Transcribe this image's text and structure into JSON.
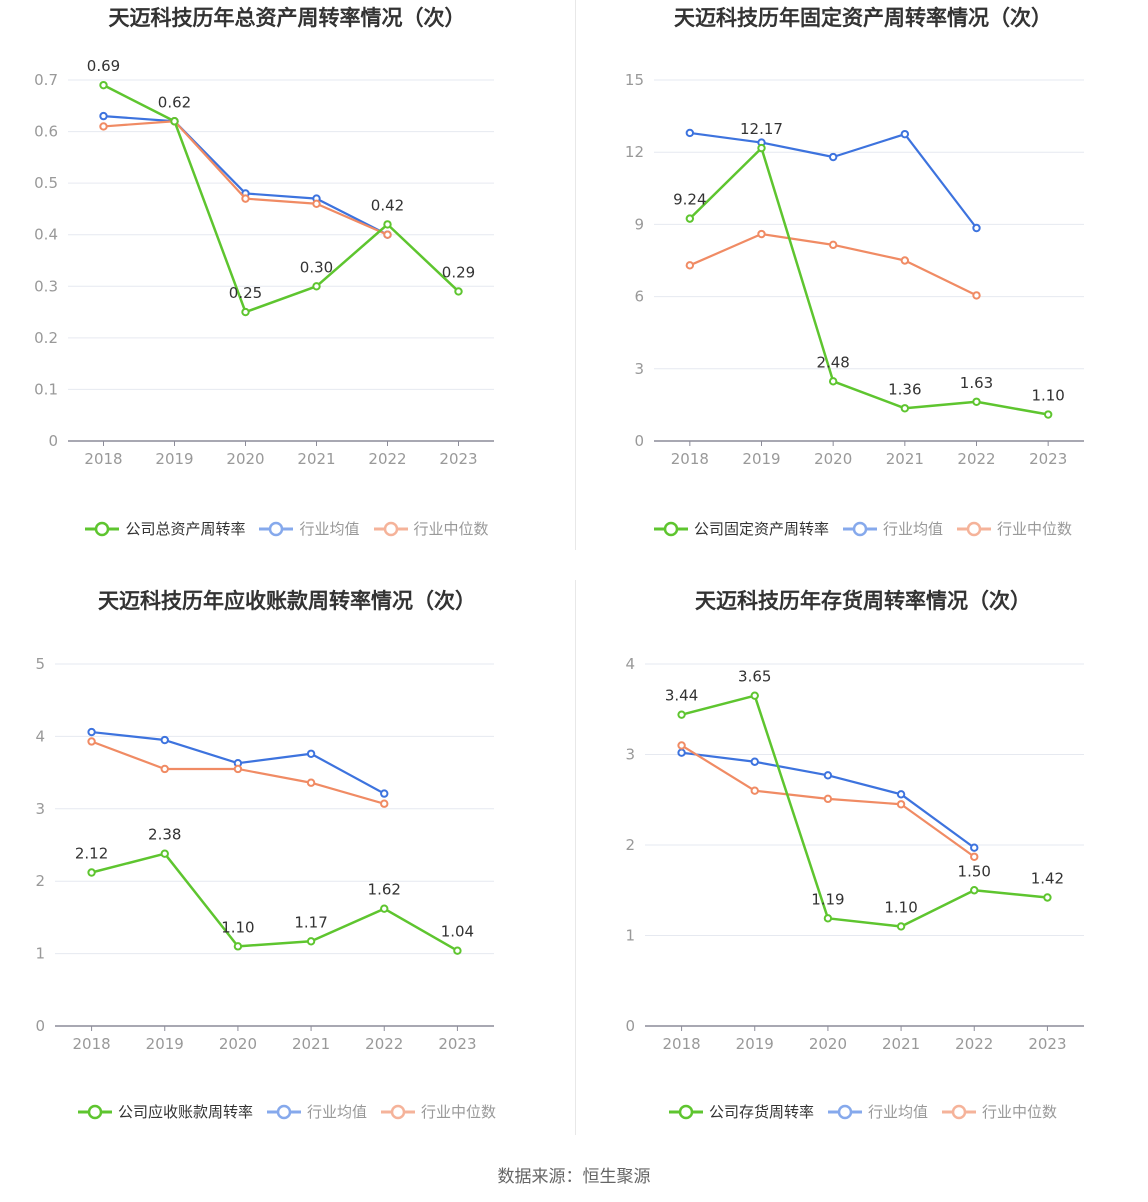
{
  "source": "数据来源：恒生聚源",
  "series_names": [
    "行业均值",
    "行业中位数"
  ],
  "colors": {
    "company": "#5ec52f",
    "average": "#3d73de",
    "median": "#f08b64"
  },
  "chart_data": [
    {
      "type": "line",
      "title": "天迈科技历年总资产周转率情况（次）",
      "x": [
        "2018",
        "2019",
        "2020",
        "2021",
        "2022",
        "2023"
      ],
      "ylim": [
        0,
        0.7
      ],
      "yticks": [
        "0",
        "0.1",
        "0.2",
        "0.3",
        "0.4",
        "0.5",
        "0.6",
        "0.7"
      ],
      "grid": true,
      "legend": "bottom",
      "series": [
        {
          "name": "公司总资产周转率",
          "values": [
            0.69,
            0.62,
            0.25,
            0.3,
            0.42,
            0.29
          ],
          "labels": [
            "0.69",
            "0.62",
            "0.25",
            "0.30",
            "0.42",
            "0.29"
          ]
        },
        {
          "name": "行业均值",
          "values": [
            0.63,
            0.62,
            0.48,
            0.47,
            0.4,
            null
          ]
        },
        {
          "name": "行业中位数",
          "values": [
            0.61,
            0.62,
            0.47,
            0.46,
            0.4,
            null
          ]
        }
      ]
    },
    {
      "type": "line",
      "title": "天迈科技历年固定资产周转率情况（次）",
      "x": [
        "2018",
        "2019",
        "2020",
        "2021",
        "2022",
        "2023"
      ],
      "ylim": [
        0,
        15
      ],
      "yticks": [
        "0",
        "3",
        "6",
        "9",
        "12",
        "15"
      ],
      "grid": true,
      "legend": "bottom",
      "series": [
        {
          "name": "公司固定资产周转率",
          "values": [
            9.24,
            12.17,
            2.48,
            1.36,
            1.63,
            1.1
          ],
          "labels": [
            "9.24",
            "12.17",
            "2.48",
            "1.36",
            "1.63",
            "1.10"
          ]
        },
        {
          "name": "行业均值",
          "values": [
            12.8,
            12.4,
            11.8,
            12.75,
            8.85,
            null
          ]
        },
        {
          "name": "行业中位数",
          "values": [
            7.3,
            8.6,
            8.15,
            7.5,
            6.05,
            null
          ]
        }
      ]
    },
    {
      "type": "line",
      "title": "天迈科技历年应收账款周转率情况（次）",
      "x": [
        "2018",
        "2019",
        "2020",
        "2021",
        "2022",
        "2023"
      ],
      "ylim": [
        0,
        5
      ],
      "yticks": [
        "0",
        "1",
        "2",
        "3",
        "4",
        "5"
      ],
      "grid": true,
      "legend": "bottom",
      "series": [
        {
          "name": "公司应收账款周转率",
          "values": [
            2.12,
            2.38,
            1.1,
            1.17,
            1.62,
            1.04
          ],
          "labels": [
            "2.12",
            "2.38",
            "1.10",
            "1.17",
            "1.62",
            "1.04"
          ]
        },
        {
          "name": "行业均值",
          "values": [
            4.06,
            3.95,
            3.63,
            3.76,
            3.21,
            null
          ]
        },
        {
          "name": "行业中位数",
          "values": [
            3.93,
            3.55,
            3.55,
            3.36,
            3.07,
            null
          ]
        }
      ]
    },
    {
      "type": "line",
      "title": "天迈科技历年存货周转率情况（次）",
      "x": [
        "2018",
        "2019",
        "2020",
        "2021",
        "2022",
        "2023"
      ],
      "ylim": [
        0,
        4
      ],
      "yticks": [
        "0",
        "1",
        "2",
        "3",
        "4"
      ],
      "grid": true,
      "legend": "bottom",
      "series": [
        {
          "name": "公司存货周转率",
          "values": [
            3.44,
            3.65,
            1.19,
            1.1,
            1.5,
            1.42
          ],
          "labels": [
            "3.44",
            "3.65",
            "1.19",
            "1.10",
            "1.50",
            "1.42"
          ]
        },
        {
          "name": "行业均值",
          "values": [
            3.02,
            2.92,
            2.77,
            2.56,
            1.97,
            null
          ]
        },
        {
          "name": "行业中位数",
          "values": [
            3.1,
            2.6,
            2.51,
            2.45,
            1.87,
            null
          ]
        }
      ]
    }
  ]
}
